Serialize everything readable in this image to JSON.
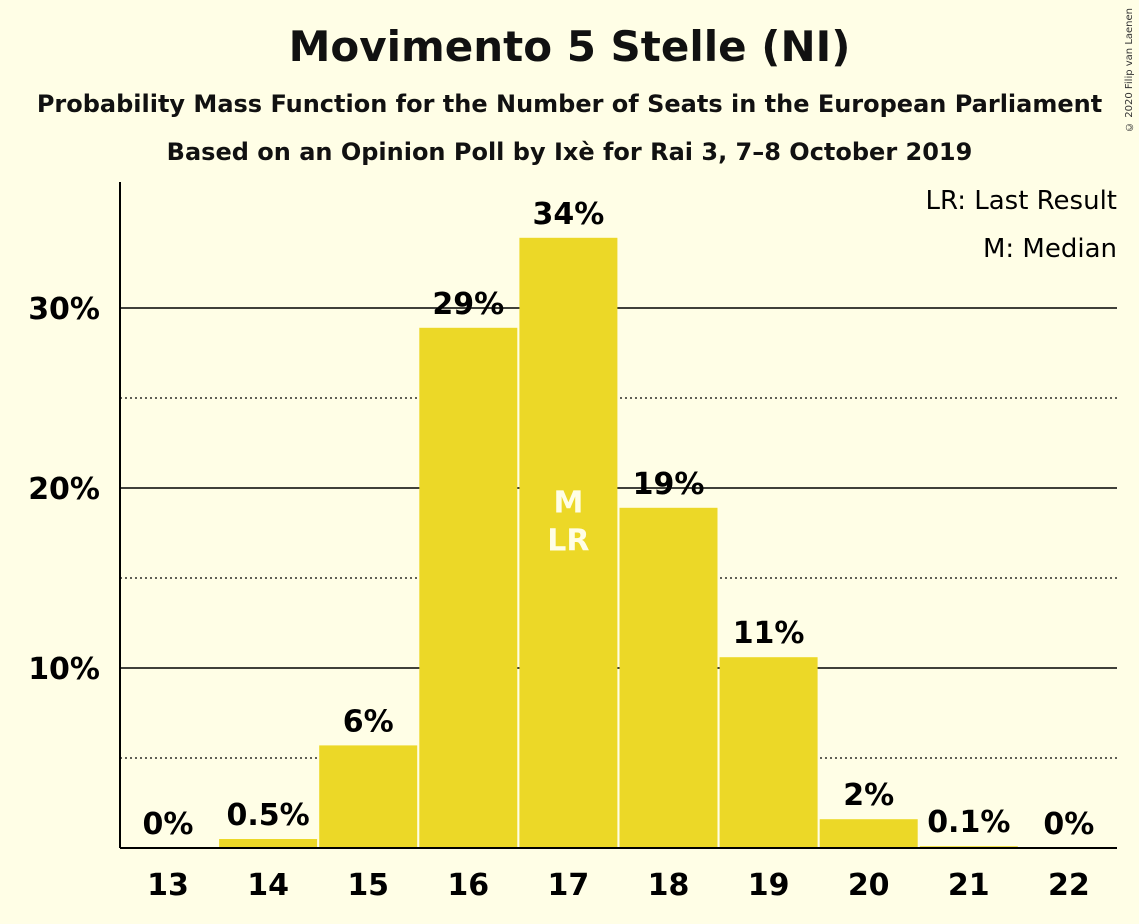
{
  "title": "Movimento 5 Stelle (NI)",
  "subtitle": "Probability Mass Function for the Number of Seats in the European Parliament",
  "subtitle2": "Based on an Opinion Poll by Ixè for Rai 3, 7–8 October 2019",
  "copyright": "© 2020 Filip van Laenen",
  "legend": {
    "last_result": "LR: Last Result",
    "median": "M: Median"
  },
  "colors": {
    "bar": "#ECD827",
    "background": "#FFFEE6",
    "grid": "#000000"
  },
  "chart_data": {
    "type": "bar",
    "categories": [
      "13",
      "14",
      "15",
      "16",
      "17",
      "18",
      "19",
      "20",
      "21",
      "22"
    ],
    "values": [
      0,
      0.5,
      5.7,
      28.9,
      33.9,
      18.9,
      10.6,
      1.6,
      0.1,
      0
    ],
    "data_labels": [
      "0%",
      "0.5%",
      "6%",
      "29%",
      "34%",
      "19%",
      "11%",
      "2%",
      "0.1%",
      "0%"
    ],
    "yticks": [
      10,
      20,
      30
    ],
    "ytick_labels": [
      "10%",
      "20%",
      "30%"
    ],
    "minor_gridlines": [
      5,
      15,
      25
    ],
    "ylim": [
      0,
      37
    ],
    "median_category": "17",
    "last_result_category": "17",
    "in_bar_markers": [
      "M",
      "LR"
    ],
    "legend_position": "top-right"
  }
}
